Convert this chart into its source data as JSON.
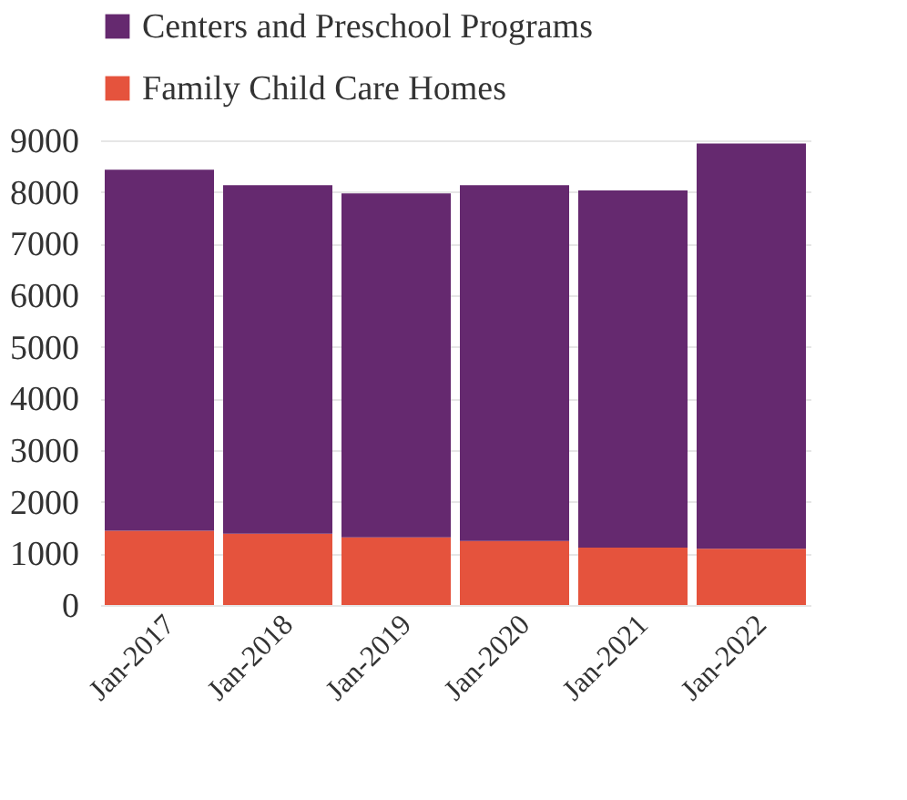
{
  "chart_data": {
    "type": "bar",
    "stacked": true,
    "categories": [
      "Jan-2017",
      "Jan-2018",
      "Jan-2019",
      "Jan-2020",
      "Jan-2021",
      "Jan-2022"
    ],
    "series": [
      {
        "name": "Family Child Care Homes",
        "color": "#e5533d",
        "values": [
          1440,
          1380,
          1310,
          1240,
          1110,
          1090
        ]
      },
      {
        "name": "Centers and Preschool Programs",
        "color": "#65296f",
        "values": [
          6990,
          6750,
          6660,
          6890,
          6920,
          7850
        ]
      }
    ],
    "ylim": [
      0,
      9000
    ],
    "yticks": [
      0,
      1000,
      2000,
      3000,
      4000,
      5000,
      6000,
      7000,
      8000,
      9000
    ],
    "grid": "y",
    "legend": "top"
  }
}
